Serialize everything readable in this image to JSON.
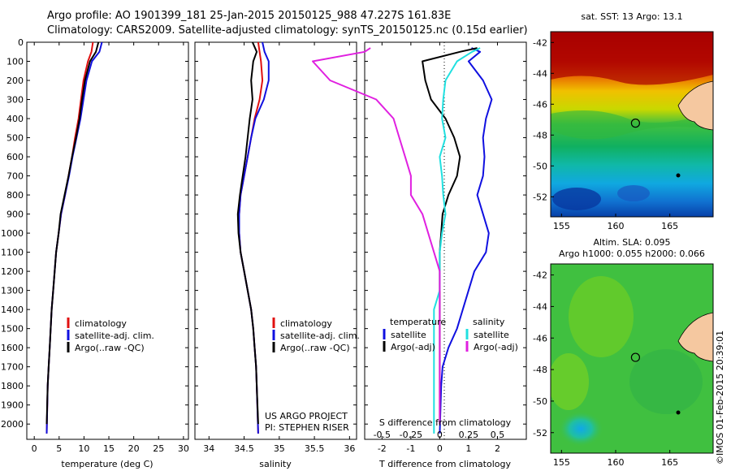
{
  "header": {
    "title_line1": "Argo profile: AO 1901399_181 25-Jan-2015 20150125_988 47.227S 161.83E",
    "title_line2": "Climatology: CARS2009. Satellite-adjusted climatology: synTS_20150125.nc (0.15d earlier)"
  },
  "credits": {
    "project": "US ARGO PROJECT",
    "pi": "PI: STEPHEN RISER",
    "watermark": "©IMOS 01-Feb-2015 20:39:01"
  },
  "colors": {
    "climatology": "#e01010",
    "satellite": "#1010e0",
    "argo": "#000000",
    "sal_satellite": "#20e0e0",
    "sal_argo": "#e020e0"
  },
  "chart_data": [
    {
      "type": "line",
      "xlabel": "temperature (deg C)",
      "xlim": [
        -1.5,
        31
      ],
      "xticks": [
        0,
        5,
        10,
        15,
        20,
        25,
        30
      ],
      "ylim": [
        2080,
        0
      ],
      "yticks": [
        0,
        100,
        200,
        300,
        400,
        500,
        600,
        700,
        800,
        900,
        1000,
        1100,
        1200,
        1300,
        1400,
        1500,
        1600,
        1700,
        1800,
        1900,
        2000
      ],
      "legend": [
        "climatology",
        "satellite-adj. clim.",
        "Argo(..raw -QC)"
      ],
      "legend_position": "lower-right",
      "series": [
        {
          "name": "climatology",
          "color": "#e01010",
          "x": [
            11.8,
            11.5,
            10.8,
            9.9,
            9.4,
            8.9,
            8.2,
            7.6,
            6.9,
            6.2,
            5.4,
            4.9,
            4.4,
            4.1,
            3.8,
            3.5,
            3.3,
            3.1,
            2.9,
            2.7,
            2.5
          ],
          "y": [
            0,
            50,
            100,
            200,
            300,
            400,
            500,
            600,
            700,
            800,
            900,
            1000,
            1100,
            1200,
            1300,
            1400,
            1500,
            1600,
            1700,
            1800,
            2050
          ]
        },
        {
          "name": "satellite-adj. clim.",
          "color": "#1010e0",
          "x": [
            13.6,
            13.1,
            11.6,
            10.5,
            9.9,
            9.3,
            8.5,
            7.7,
            7.0,
            6.2,
            5.4,
            4.9,
            4.4,
            4.1,
            3.8,
            3.5,
            3.3,
            3.1,
            2.9,
            2.7,
            2.5
          ],
          "y": [
            0,
            50,
            100,
            200,
            300,
            400,
            500,
            600,
            700,
            800,
            900,
            1000,
            1100,
            1200,
            1300,
            1400,
            1500,
            1600,
            1700,
            1800,
            2050
          ]
        },
        {
          "name": "Argo(..raw -QC)",
          "color": "#000000",
          "x": [
            12.9,
            12.4,
            11.2,
            10.2,
            9.6,
            9.1,
            8.4,
            7.6,
            6.9,
            6.1,
            5.3,
            4.9,
            4.4,
            4.1,
            3.8,
            3.5,
            3.3,
            3.1,
            2.9,
            2.7,
            2.5
          ],
          "y": [
            0,
            50,
            100,
            200,
            300,
            400,
            500,
            600,
            700,
            800,
            900,
            1000,
            1100,
            1200,
            1300,
            1400,
            1500,
            1600,
            1700,
            1800,
            2000
          ]
        }
      ]
    },
    {
      "type": "line",
      "xlabel": "salinity",
      "xlim": [
        33.8,
        36.1
      ],
      "xticks": [
        34,
        34.5,
        35,
        35.5,
        36
      ],
      "ylim": [
        2080,
        0
      ],
      "legend": [
        "climatology",
        "satellite-adj. clim.",
        "Argo(..raw -QC)"
      ],
      "legend_position": "lower-right",
      "series": [
        {
          "name": "climatology",
          "color": "#e01010",
          "x": [
            34.7,
            34.72,
            34.74,
            34.76,
            34.72,
            34.65,
            34.6,
            34.55,
            34.5,
            34.45,
            34.43,
            34.43,
            34.45,
            34.5,
            34.55,
            34.6,
            34.63,
            34.65,
            34.67,
            34.68,
            34.7
          ],
          "y": [
            0,
            50,
            100,
            200,
            300,
            400,
            500,
            600,
            700,
            800,
            900,
            1000,
            1100,
            1200,
            1300,
            1400,
            1500,
            1600,
            1700,
            1800,
            2050
          ]
        },
        {
          "name": "satellite-adj. clim.",
          "color": "#1010e0",
          "x": [
            34.76,
            34.79,
            34.85,
            34.85,
            34.78,
            34.66,
            34.6,
            34.55,
            34.5,
            34.45,
            34.43,
            34.43,
            34.45,
            34.5,
            34.55,
            34.6,
            34.63,
            34.65,
            34.67,
            34.68,
            34.7
          ],
          "y": [
            0,
            50,
            100,
            200,
            300,
            400,
            500,
            600,
            700,
            800,
            900,
            1000,
            1100,
            1200,
            1300,
            1400,
            1500,
            1600,
            1700,
            1800,
            2050
          ]
        },
        {
          "name": "Argo(..raw -QC)",
          "color": "#000000",
          "x": [
            34.62,
            34.68,
            34.63,
            34.6,
            34.62,
            34.58,
            34.55,
            34.52,
            34.48,
            34.44,
            34.41,
            34.42,
            34.45,
            34.5,
            34.55,
            34.6,
            34.63,
            34.65,
            34.67,
            34.68,
            34.7
          ],
          "y": [
            0,
            50,
            100,
            200,
            300,
            400,
            500,
            600,
            700,
            800,
            900,
            1000,
            1100,
            1200,
            1300,
            1400,
            1500,
            1600,
            1700,
            1800,
            2000
          ]
        }
      ]
    },
    {
      "type": "line",
      "xlabel": "T difference from climatology",
      "xlabel_top": "S difference from climatology",
      "xlim": [
        -2.6,
        3.0
      ],
      "xticks": [
        -2,
        -1,
        0,
        1,
        2
      ],
      "xticks_top": [
        "-0.5",
        "-0.25",
        "0",
        "0.25",
        "0.5"
      ],
      "ylim": [
        2080,
        0
      ],
      "legend_temperature_title": "temperature",
      "legend_salinity_title": "salinity",
      "legend_temperature": [
        "satellite",
        "Argo(-adj)"
      ],
      "legend_salinity": [
        "satellite",
        "Argo(-adj)"
      ],
      "series": [
        {
          "name": "temperature satellite",
          "color": "#1010e0",
          "x": [
            1.1,
            1.4,
            1.0,
            1.5,
            1.8,
            1.6,
            1.5,
            1.55,
            1.5,
            1.3,
            1.5,
            1.7,
            1.6,
            1.2,
            1.0,
            0.8,
            0.6,
            0.3,
            0.1,
            0.05,
            0.0
          ],
          "y": [
            30,
            50,
            100,
            200,
            300,
            400,
            500,
            600,
            700,
            800,
            900,
            1000,
            1100,
            1200,
            1300,
            1400,
            1500,
            1600,
            1700,
            1800,
            2050
          ]
        },
        {
          "name": "temperature Argo(-adj)",
          "color": "#000000",
          "x": [
            1.3,
            0.7,
            -0.6,
            -0.5,
            -0.3,
            0.2,
            0.5,
            0.7,
            0.6,
            0.3,
            0.1,
            0.05,
            0.0,
            0.0,
            0.0,
            0.0,
            0.0,
            0.0,
            0.0,
            0.0,
            0.0
          ],
          "y": [
            30,
            50,
            100,
            200,
            300,
            400,
            500,
            600,
            700,
            800,
            900,
            1000,
            1100,
            1200,
            1300,
            1400,
            1500,
            1600,
            1700,
            1800,
            2000
          ]
        },
        {
          "name": "salinity satellite",
          "color": "#20e0e0",
          "x": [
            0.35,
            0.28,
            0.15,
            0.05,
            0.03,
            0.02,
            0.05,
            0.0,
            0.02,
            0.03,
            0.05,
            0.02,
            0.0,
            0.0,
            0.0,
            -0.05,
            -0.05,
            -0.05,
            -0.05,
            -0.05,
            -0.05
          ],
          "y": [
            30,
            50,
            100,
            200,
            300,
            400,
            500,
            600,
            700,
            800,
            900,
            1000,
            1100,
            1200,
            1300,
            1400,
            1500,
            1600,
            1700,
            1800,
            2050
          ]
        },
        {
          "name": "salinity Argo(-adj)",
          "color": "#e020e0",
          "x": [
            -0.6,
            -0.65,
            -1.1,
            -0.95,
            -0.55,
            -0.4,
            -0.35,
            -0.3,
            -0.25,
            -0.25,
            -0.15,
            -0.1,
            -0.05,
            0.0,
            0.0,
            0.0,
            0.0,
            0.0,
            0.0,
            0.0,
            0.0
          ],
          "y": [
            30,
            50,
            100,
            200,
            300,
            400,
            500,
            600,
            700,
            800,
            900,
            1000,
            1100,
            1200,
            1300,
            1400,
            1500,
            1600,
            1700,
            1800,
            2000
          ]
        }
      ]
    },
    {
      "type": "heatmap",
      "title": "sat. SST: 13 Argo: 13.1",
      "xticks": [
        155,
        160,
        165
      ],
      "yticks": [
        -42,
        -44,
        -46,
        -48,
        -50,
        -52
      ],
      "xlim": [
        154,
        169
      ],
      "ylim": [
        -53.3,
        -41.3
      ],
      "argo_position": {
        "lon": 161.83,
        "lat": -47.227
      }
    },
    {
      "type": "heatmap",
      "title_line1": "Altim. SLA: 0.095",
      "title_line2": "Argo h1000: 0.055 h2000: 0.066",
      "xticks": [
        155,
        160,
        165
      ],
      "yticks": [
        -42,
        -44,
        -46,
        -48,
        -50,
        -52
      ],
      "xlim": [
        154,
        169
      ],
      "ylim": [
        -53.3,
        -41.3
      ],
      "argo_position": {
        "lon": 161.83,
        "lat": -47.227
      }
    }
  ]
}
